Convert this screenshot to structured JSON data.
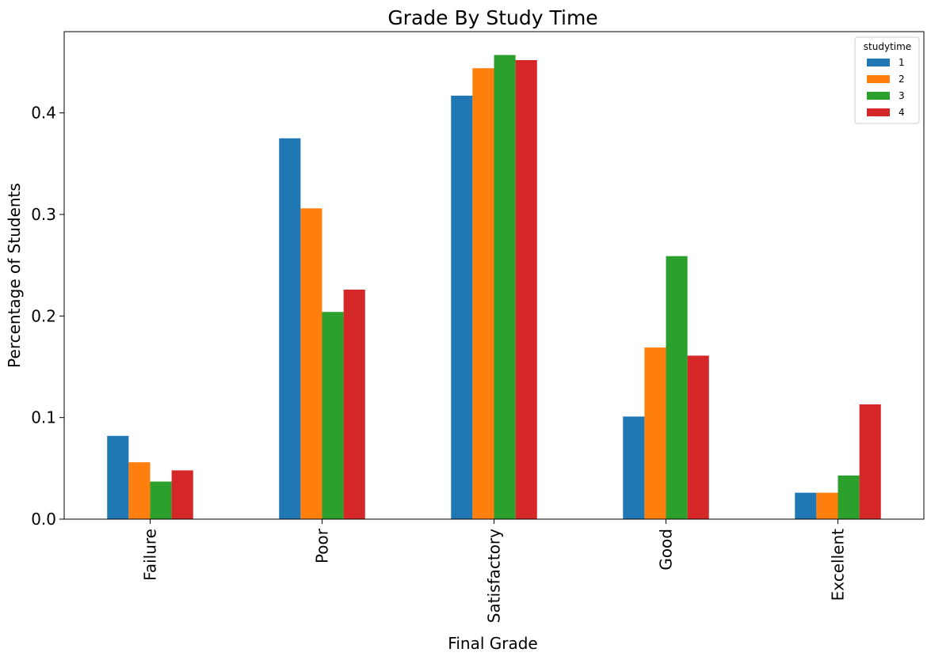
{
  "chart_data": {
    "type": "bar",
    "title": "Grade By Study Time",
    "xlabel": "Final Grade",
    "ylabel": "Percentage of Students",
    "categories": [
      "Failure",
      "Poor",
      "Satisfactory",
      "Good",
      "Excellent"
    ],
    "series": [
      {
        "name": "1",
        "color": "#1f77b4",
        "values": [
          0.082,
          0.375,
          0.417,
          0.101,
          0.026
        ]
      },
      {
        "name": "2",
        "color": "#ff7f0e",
        "values": [
          0.056,
          0.306,
          0.444,
          0.169,
          0.026
        ]
      },
      {
        "name": "3",
        "color": "#2ca02c",
        "values": [
          0.037,
          0.204,
          0.457,
          0.259,
          0.043
        ]
      },
      {
        "name": "4",
        "color": "#d62728",
        "values": [
          0.048,
          0.226,
          0.452,
          0.161,
          0.113
        ]
      }
    ],
    "ylim": [
      0,
      0.48
    ],
    "yticks": [
      0.0,
      0.1,
      0.2,
      0.3,
      0.4
    ],
    "ytick_labels": [
      "0.0",
      "0.1",
      "0.2",
      "0.3",
      "0.4"
    ],
    "grid": false,
    "legend": {
      "title": "studytime",
      "placement": "top-right"
    }
  }
}
